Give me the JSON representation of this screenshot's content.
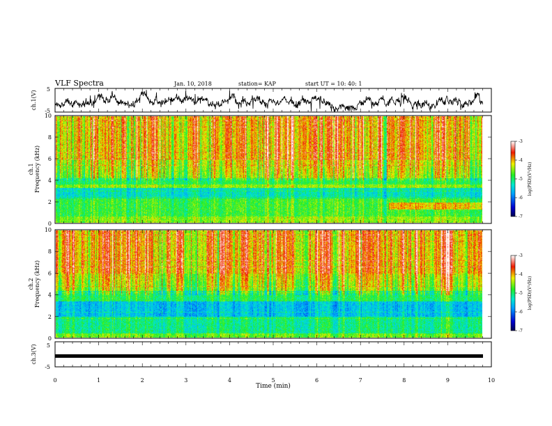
{
  "header": {
    "title": "VLF Spectra",
    "date": "Jan. 10, 2018",
    "station": "station= KAP",
    "start": "start UT = 10: 40: 1"
  },
  "chart_data": [
    {
      "type": "line",
      "name": "waveform-ch1",
      "ylabel": "ch.1(V)",
      "ylim": [
        -5,
        5
      ],
      "yticks": [
        "5",
        "-5"
      ],
      "xlim": [
        0,
        10
      ]
    },
    {
      "type": "heatmap",
      "name": "spectrogram-ch1",
      "ylabel": "ch.1 Frequency (kHz)",
      "ylabel_top": "ch.1",
      "ylabel_bottom": "Frequency (kHz)",
      "ylim": [
        0,
        10
      ],
      "yticks": [
        "0",
        "2",
        "4",
        "6",
        "8",
        "10"
      ],
      "xlim": [
        0,
        10
      ],
      "colorbar": {
        "label": "log(PSD)(V²/Hz)",
        "range": [
          -7,
          -3
        ],
        "ticks": [
          "-3",
          "-4",
          "-5",
          "-6",
          "-7"
        ]
      }
    },
    {
      "type": "heatmap",
      "name": "spectrogram-ch2",
      "ylabel": "ch.2 Frequency (kHz)",
      "ylabel_top": "ch.2",
      "ylabel_bottom": "Frequency (kHz)",
      "ylim": [
        0,
        10
      ],
      "yticks": [
        "0",
        "2",
        "4",
        "6",
        "8",
        "10"
      ],
      "xlim": [
        0,
        10
      ],
      "colorbar": {
        "label": "log(PSD)(V²/Hz)",
        "range": [
          -7,
          -3
        ],
        "ticks": [
          "-3",
          "-4",
          "-5",
          "-6",
          "-7"
        ]
      }
    },
    {
      "type": "line",
      "name": "waveform-ch3",
      "ylabel": "ch.3(V)",
      "ylim": [
        -5,
        5
      ],
      "yticks": [
        "5",
        "-5"
      ],
      "xlim": [
        0,
        10
      ],
      "series": [
        {
          "level": 0
        }
      ]
    }
  ],
  "xaxis": {
    "label": "Time (min)",
    "ticks": [
      "0",
      "1",
      "2",
      "3",
      "4",
      "5",
      "6",
      "7",
      "8",
      "9",
      "10"
    ]
  },
  "colors": {
    "low": "#0000c0",
    "mid_low": "#00d8e8",
    "mid": "#22ee22",
    "mid_high": "#f0f000",
    "high": "#ee1a00"
  }
}
